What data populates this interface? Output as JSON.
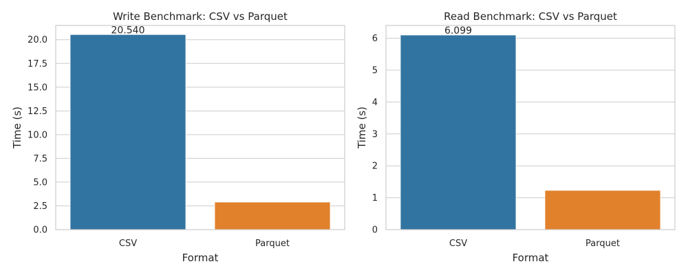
{
  "chart_data": [
    {
      "type": "bar",
      "title": "Write Benchmark: CSV vs Parquet",
      "xlabel": "Format",
      "ylabel": "Time (s)",
      "categories": [
        "CSV",
        "Parquet"
      ],
      "values": [
        20.54,
        2.9
      ],
      "value_labels": [
        "20.540",
        ""
      ],
      "colors": [
        "#3274a1",
        "#e1812c"
      ],
      "ylim": [
        0,
        21.5
      ],
      "yticks": [
        0.0,
        2.5,
        5.0,
        7.5,
        10.0,
        12.5,
        15.0,
        17.5,
        20.0
      ],
      "ytick_labels": [
        "0.0",
        "2.5",
        "5.0",
        "7.5",
        "10.0",
        "12.5",
        "15.0",
        "17.5",
        "20.0"
      ],
      "grid": true,
      "legend": "none"
    },
    {
      "type": "bar",
      "title": "Read Benchmark: CSV vs Parquet",
      "xlabel": "Format",
      "ylabel": "Time (s)",
      "categories": [
        "CSV",
        "Parquet"
      ],
      "values": [
        6.099,
        1.23
      ],
      "value_labels": [
        "6.099",
        ""
      ],
      "colors": [
        "#3274a1",
        "#e1812c"
      ],
      "ylim": [
        0,
        6.4
      ],
      "yticks": [
        0,
        1,
        2,
        3,
        4,
        5,
        6
      ],
      "ytick_labels": [
        "0",
        "1",
        "2",
        "3",
        "4",
        "5",
        "6"
      ],
      "grid": true,
      "legend": "none"
    }
  ]
}
